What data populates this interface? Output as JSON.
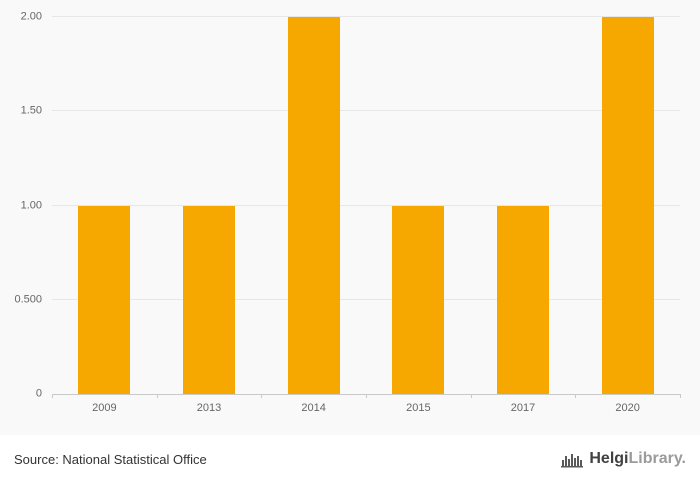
{
  "chart_data": {
    "type": "bar",
    "categories": [
      "2009",
      "2013",
      "2014",
      "2015",
      "2017",
      "2020"
    ],
    "values": [
      1,
      1,
      2,
      1,
      1,
      2
    ],
    "title": "",
    "xlabel": "",
    "ylabel": "",
    "ylim": [
      0,
      2.0
    ],
    "yticks": [
      0,
      0.5,
      1.0,
      1.5,
      2.0
    ],
    "ytick_labels": [
      "0",
      "0.500",
      "1.00",
      "1.50",
      "2.00"
    ],
    "bar_color": "#f7a800",
    "grid": true,
    "legend": "none",
    "background": "#f9f9f9"
  },
  "footer": {
    "source": "Source: National Statistical Office",
    "logo_helgi": "Helgi",
    "logo_library": "Library."
  }
}
